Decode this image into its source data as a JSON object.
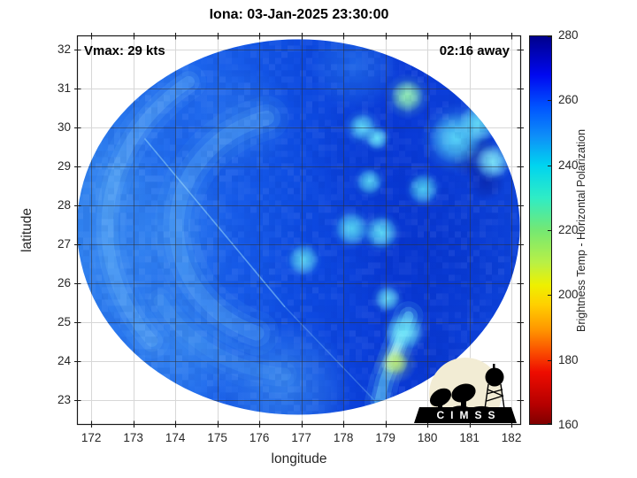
{
  "chart_data": {
    "type": "heatmap",
    "title": "Iona: 03-Jan-2025 23:30:00",
    "xlabel": "longitude",
    "ylabel": "latitude",
    "xlim": [
      171.66,
      182.23
    ],
    "ylim": [
      22.36,
      32.36
    ],
    "xticks": [
      172,
      173,
      174,
      175,
      176,
      177,
      178,
      179,
      180,
      181,
      182
    ],
    "yticks": [
      23,
      24,
      25,
      26,
      27,
      28,
      29,
      30,
      31,
      32
    ],
    "grid": true,
    "annotations": [
      {
        "text": "Vmax: 29 kts",
        "position": "top-left"
      },
      {
        "text": "02:16 away",
        "position": "top-right"
      }
    ],
    "colorbar": {
      "label": "Brightness Temp - Horizontal Polarization",
      "min": 160,
      "max": 280,
      "ticks": [
        160,
        180,
        200,
        220,
        240,
        260,
        280
      ],
      "stops": [
        {
          "v": 280,
          "c": "#00008c"
        },
        {
          "v": 268,
          "c": "#0008f0"
        },
        {
          "v": 258,
          "c": "#0055ff"
        },
        {
          "v": 249,
          "c": "#0e8ff8"
        },
        {
          "v": 240,
          "c": "#00d4f0"
        },
        {
          "v": 230,
          "c": "#2fecc5"
        },
        {
          "v": 220,
          "c": "#74e873"
        },
        {
          "v": 210,
          "c": "#b8f046"
        },
        {
          "v": 203,
          "c": "#eef000"
        },
        {
          "v": 197,
          "c": "#ffd000"
        },
        {
          "v": 189,
          "c": "#ff9400"
        },
        {
          "v": 182,
          "c": "#fa4a00"
        },
        {
          "v": 176,
          "c": "#ee0c00"
        },
        {
          "v": 166,
          "c": "#b50000"
        },
        {
          "v": 160,
          "c": "#800000"
        }
      ]
    },
    "swath": {
      "center_lon": 176.93,
      "center_lat": 27.44,
      "radius_lon": 5.27,
      "radius_lat": 4.82,
      "base_gradient": [
        {
          "at": 0,
          "c": "#2f80ef"
        },
        {
          "at": 0.28,
          "c": "#1b63ec"
        },
        {
          "at": 0.5,
          "c": "#0e4ce2"
        },
        {
          "at": 0.72,
          "c": "#0a3ad8"
        },
        {
          "at": 1,
          "c": "#0d43da"
        }
      ],
      "patches": [
        {
          "lon": 173.4,
          "lat": 27.2,
          "r": 2.0,
          "c": "#4093f2",
          "a": 0.5
        },
        {
          "lon": 174.2,
          "lat": 24.3,
          "r": 1.6,
          "c": "#4aa0f4",
          "a": 0.45
        },
        {
          "lon": 175.5,
          "lat": 30.2,
          "r": 1.3,
          "c": "#3a8af0",
          "a": 0.4
        },
        {
          "lon": 176.6,
          "lat": 23.3,
          "r": 1.6,
          "c": "#4fa6f4",
          "a": 0.5
        },
        {
          "lon": 172.4,
          "lat": 28.6,
          "r": 1.0,
          "c": "#3e90f0",
          "a": 0.45
        },
        {
          "lon": 178.3,
          "lat": 31.6,
          "r": 1.1,
          "c": "#2e86f0",
          "a": 0.5
        },
        {
          "lon": 179.9,
          "lat": 26.9,
          "r": 2.3,
          "c": "#0531c8",
          "a": 0.5
        },
        {
          "lon": 178.7,
          "lat": 29.2,
          "r": 1.6,
          "c": "#0637d0",
          "a": 0.45
        },
        {
          "lon": 181.1,
          "lat": 29.3,
          "r": 0.6,
          "c": "#0a1f9e",
          "a": 0.8
        },
        {
          "lon": 181.4,
          "lat": 28.6,
          "r": 0.45,
          "c": "#0a1f9e",
          "a": 0.6
        },
        {
          "lon": 180.1,
          "lat": 24.2,
          "r": 0.95,
          "c": "#0733c8",
          "a": 0.55
        },
        {
          "lon": 177.5,
          "lat": 26.2,
          "r": 1.4,
          "c": "#0b45e0",
          "a": 0.4
        }
      ],
      "arcs": [
        {
          "r": 2.9,
          "a0": 110,
          "a1": 255,
          "w": 0.5,
          "c": "#69b9f6",
          "a": 0.4
        },
        {
          "r": 4.55,
          "a0": 140,
          "a1": 235,
          "w": 0.4,
          "c": "#7dc8fa",
          "a": 0.38
        },
        {
          "r": 3.8,
          "a0": 95,
          "a1": 150,
          "w": 0.45,
          "c": "#5aaaf4",
          "a": 0.3
        }
      ],
      "seams": [
        {
          "pts": [
            [
              173.28,
              29.7
            ],
            [
              176.6,
              25.4
            ]
          ],
          "w": 1.6,
          "c": "#96d7fa",
          "a": 0.55
        },
        {
          "pts": [
            [
              176.6,
              25.4
            ],
            [
              178.82,
              22.9
            ]
          ],
          "w": 1.4,
          "c": "#82c3f6",
          "a": 0.35
        }
      ],
      "streaks": [
        {
          "pts": [
            [
              179.55,
              25.15
            ],
            [
              179.28,
              24.35
            ],
            [
              178.98,
              23.5
            ],
            [
              178.86,
              22.95
            ]
          ],
          "w": 0.34,
          "c": "#73e1fa",
          "a": 0.6
        },
        {
          "pts": [
            [
              179.38,
              24.65
            ],
            [
              179.1,
              23.9
            ]
          ],
          "w": 0.17,
          "c": "#b9f5fc",
          "a": 0.8
        }
      ],
      "spots": [
        {
          "lon": 179.52,
          "lat": 30.8,
          "r": 0.26,
          "c": "#93f2b4",
          "halo": 0.55
        },
        {
          "lon": 178.45,
          "lat": 30.0,
          "r": 0.22,
          "c": "#5fd8f8",
          "halo": 0.45
        },
        {
          "lon": 178.8,
          "lat": 29.72,
          "r": 0.18,
          "c": "#66e0f8",
          "halo": 0.35
        },
        {
          "lon": 180.68,
          "lat": 29.72,
          "r": 0.42,
          "c": "#55d4f8",
          "halo": 0.85
        },
        {
          "lon": 181.2,
          "lat": 30.1,
          "r": 0.3,
          "c": "#60d8f6",
          "halo": 0.5
        },
        {
          "lon": 181.55,
          "lat": 29.12,
          "r": 0.27,
          "c": "#7fe8fa",
          "halo": 0.5
        },
        {
          "lon": 178.62,
          "lat": 28.6,
          "r": 0.2,
          "c": "#55d0f5",
          "halo": 0.4
        },
        {
          "lon": 179.9,
          "lat": 28.42,
          "r": 0.24,
          "c": "#4cc8f2",
          "halo": 0.45
        },
        {
          "lon": 178.2,
          "lat": 27.4,
          "r": 0.26,
          "c": "#55d4f6",
          "halo": 0.5
        },
        {
          "lon": 178.9,
          "lat": 27.3,
          "r": 0.26,
          "c": "#5ad8f6",
          "halo": 0.5
        },
        {
          "lon": 177.05,
          "lat": 26.6,
          "r": 0.24,
          "c": "#58d0f2",
          "halo": 0.45
        },
        {
          "lon": 179.05,
          "lat": 25.6,
          "r": 0.2,
          "c": "#62d4f4",
          "halo": 0.4
        },
        {
          "lon": 179.45,
          "lat": 24.75,
          "r": 0.3,
          "c": "#6ae4f8",
          "halo": 0.55
        },
        {
          "lon": 179.25,
          "lat": 23.95,
          "r": 0.2,
          "c": "#c2f27a",
          "halo": 0.5
        }
      ],
      "noise": {
        "seed": 1337,
        "cell": 7,
        "alpha": 0.06
      }
    }
  },
  "logo": {
    "text": "CIMSS",
    "circle_color": "#f2ecd4",
    "silhouette_color": "#000000",
    "text_color": "#ffffff"
  }
}
